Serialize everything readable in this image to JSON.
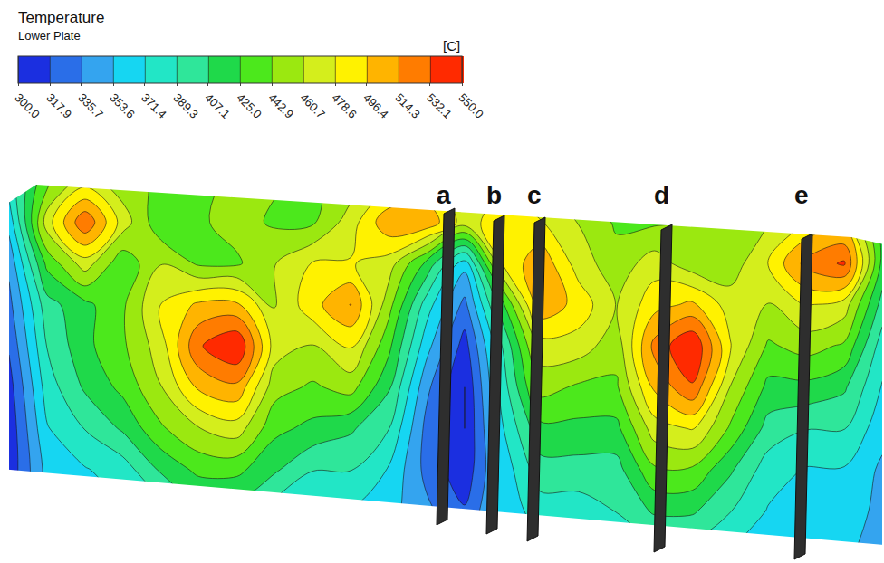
{
  "chart_data": {
    "type": "contour",
    "title": "Temperature",
    "subtitle": "Lower Plate",
    "colorbar_title": "[C]",
    "tick_labels": false,
    "sections": [
      "a",
      "b",
      "c",
      "d",
      "e"
    ],
    "colorbar": {
      "range": [
        300,
        550
      ],
      "ticks": [
        {
          "value": 300.0,
          "label": "300.0"
        },
        {
          "value": 317.9,
          "label": "317.9"
        },
        {
          "value": 335.7,
          "label": "335.7"
        },
        {
          "value": 353.6,
          "label": "353.6"
        },
        {
          "value": 371.4,
          "label": "371.4"
        },
        {
          "value": 389.3,
          "label": "389.3"
        },
        {
          "value": 407.1,
          "label": "407.1"
        },
        {
          "value": 425.0,
          "label": "425.0"
        },
        {
          "value": 442.9,
          "label": "442.9"
        },
        {
          "value": 460.7,
          "label": "460.7"
        },
        {
          "value": 478.6,
          "label": "478.6"
        },
        {
          "value": 496.4,
          "label": "496.4"
        },
        {
          "value": 514.3,
          "label": "514.3"
        },
        {
          "value": 532.1,
          "label": "532.1"
        },
        {
          "value": 550.0,
          "label": "550.0"
        }
      ]
    },
    "cells": [
      [
        380,
        440,
        470,
        450,
        440,
        440,
        445,
        445,
        440,
        450,
        470,
        480,
        460,
        470,
        460,
        440,
        440,
        440,
        440,
        440,
        450,
        470,
        470,
        430
      ],
      [
        360,
        470,
        530,
        470,
        430,
        440,
        450,
        440,
        440,
        470,
        510,
        510,
        470,
        490,
        480,
        460,
        440,
        440,
        445,
        450,
        460,
        480,
        490,
        420
      ],
      [
        340,
        430,
        470,
        430,
        460,
        440,
        440,
        460,
        480,
        480,
        470,
        420,
        360,
        480,
        510,
        470,
        450,
        470,
        450,
        450,
        480,
        520,
        535,
        420
      ],
      [
        330,
        400,
        420,
        440,
        480,
        500,
        500,
        460,
        490,
        515,
        450,
        380,
        330,
        420,
        510,
        490,
        460,
        490,
        500,
        470,
        460,
        480,
        470,
        400
      ],
      [
        320,
        390,
        420,
        440,
        470,
        530,
        550,
        470,
        460,
        480,
        430,
        360,
        310,
        390,
        470,
        470,
        450,
        520,
        550,
        480,
        440,
        450,
        440,
        380
      ],
      [
        310,
        380,
        410,
        430,
        460,
        500,
        510,
        450,
        440,
        450,
        410,
        340,
        300,
        380,
        450,
        440,
        440,
        500,
        530,
        460,
        420,
        420,
        410,
        370
      ],
      [
        305,
        370,
        390,
        410,
        440,
        460,
        470,
        430,
        420,
        410,
        390,
        330,
        300,
        370,
        420,
        420,
        420,
        470,
        480,
        440,
        400,
        390,
        390,
        360
      ],
      [
        305,
        360,
        370,
        380,
        410,
        430,
        430,
        410,
        390,
        390,
        370,
        330,
        305,
        360,
        400,
        400,
        400,
        440,
        440,
        410,
        380,
        370,
        370,
        350
      ],
      [
        310,
        360,
        360,
        370,
        380,
        400,
        400,
        380,
        370,
        370,
        360,
        340,
        320,
        360,
        380,
        380,
        390,
        410,
        410,
        390,
        370,
        360,
        360,
        350
      ],
      [
        320,
        355,
        355,
        360,
        365,
        370,
        370,
        365,
        360,
        360,
        355,
        345,
        335,
        355,
        365,
        365,
        370,
        380,
        380,
        370,
        360,
        355,
        355,
        350
      ]
    ]
  }
}
